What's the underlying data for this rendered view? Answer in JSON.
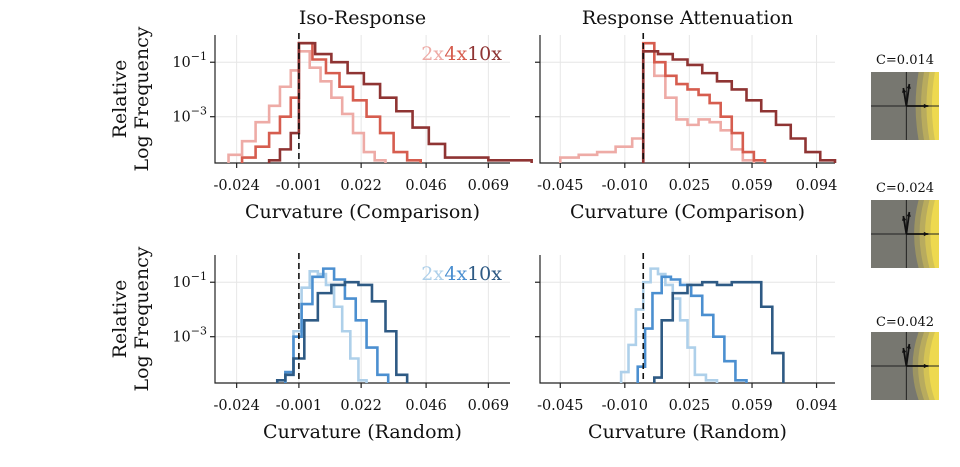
{
  "chart_data": [
    {
      "id": "iso_comparison",
      "type": "line",
      "title": "Iso-Response",
      "xlabel": "Curvature (Comparison)",
      "ylabel": [
        "Relative",
        "Log Frequency"
      ],
      "x_ticks": [
        "-0.024",
        "-0.001",
        "0.022",
        "0.046",
        "0.069"
      ],
      "y_ticks": [
        "10^-1",
        "10^-3"
      ],
      "xlim": [
        -0.032,
        0.077
      ],
      "ylog_range": [
        -4.7,
        0.0
      ],
      "ref_line_x": -0.001,
      "legend": [
        "2x",
        "4x",
        "10x"
      ],
      "series": [
        {
          "name": "2x",
          "color": "#eeaba6",
          "x": [
            -0.027,
            -0.022,
            -0.017,
            -0.012,
            -0.008,
            -0.004,
            -0.001,
            0.003,
            0.007,
            0.011,
            0.015,
            0.019,
            0.023,
            0.027
          ],
          "y": [
            -4.4,
            -3.9,
            -3.2,
            -2.6,
            -1.9,
            -1.3,
            -0.6,
            -1.2,
            -1.7,
            -2.3,
            -2.9,
            -3.6,
            -4.3,
            -4.6
          ]
        },
        {
          "name": "4x",
          "color": "#d65d4f",
          "x": [
            -0.022,
            -0.017,
            -0.012,
            -0.008,
            -0.004,
            -0.001,
            0.004,
            0.009,
            0.014,
            0.019,
            0.024,
            0.029,
            0.034,
            0.039
          ],
          "y": [
            -4.5,
            -4.1,
            -3.6,
            -3.0,
            -2.3,
            -0.3,
            -0.9,
            -1.4,
            -1.9,
            -2.4,
            -3.0,
            -3.6,
            -4.3,
            -4.6
          ]
        },
        {
          "name": "10x",
          "color": "#8f3433",
          "x": [
            -0.012,
            -0.008,
            -0.004,
            -0.001,
            0.005,
            0.011,
            0.017,
            0.023,
            0.029,
            0.035,
            0.041,
            0.047,
            0.053,
            0.069
          ],
          "y": [
            -4.6,
            -4.2,
            -3.6,
            -0.3,
            -0.7,
            -1.0,
            -1.4,
            -1.8,
            -2.3,
            -2.8,
            -3.4,
            -4.0,
            -4.5,
            -4.6
          ]
        }
      ]
    },
    {
      "id": "attn_comparison",
      "type": "line",
      "title": "Response Attenuation",
      "xlabel": "Curvature (Comparison)",
      "ylabel": [],
      "x_ticks": [
        "-0.045",
        "-0.010",
        "0.025",
        "0.059",
        "0.094"
      ],
      "y_ticks": [],
      "xlim": [
        -0.056,
        0.104
      ],
      "ylog_range": [
        -4.7,
        0.0
      ],
      "ref_line_x": 0.0,
      "legend": [],
      "series": [
        {
          "name": "2x",
          "color": "#eeaba6",
          "x": [
            -0.045,
            -0.035,
            -0.025,
            -0.015,
            -0.006,
            0.0,
            0.006,
            0.012,
            0.018,
            0.024,
            0.03,
            0.036,
            0.042,
            0.048,
            0.054
          ],
          "y": [
            -4.5,
            -4.4,
            -4.3,
            -4.1,
            -3.8,
            -0.6,
            -1.5,
            -2.3,
            -3.1,
            -3.3,
            -3.1,
            -3.2,
            -3.5,
            -4.2,
            -4.6
          ]
        },
        {
          "name": "4x",
          "color": "#d65d4f",
          "x": [
            0.0,
            0.006,
            0.012,
            0.018,
            0.024,
            0.03,
            0.036,
            0.042,
            0.048,
            0.054,
            0.06
          ],
          "y": [
            -0.3,
            -1.0,
            -1.5,
            -1.8,
            -2.0,
            -2.2,
            -2.5,
            -3.0,
            -3.6,
            -4.3,
            -4.6
          ]
        },
        {
          "name": "10x",
          "color": "#8f3433",
          "x": [
            0.0,
            0.008,
            0.016,
            0.024,
            0.032,
            0.04,
            0.048,
            0.056,
            0.064,
            0.072,
            0.08,
            0.088,
            0.096
          ],
          "y": [
            -0.6,
            -0.7,
            -0.9,
            -1.1,
            -1.4,
            -1.7,
            -2.0,
            -2.4,
            -2.8,
            -3.3,
            -3.8,
            -4.3,
            -4.6
          ]
        }
      ]
    },
    {
      "id": "iso_random",
      "type": "line",
      "title": "",
      "xlabel": "Curvature (Random)",
      "ylabel": [
        "Relative",
        "Log Frequency"
      ],
      "x_ticks": [
        "-0.024",
        "-0.001",
        "0.022",
        "0.046",
        "0.069"
      ],
      "y_ticks": [
        "10^-1",
        "10^-3"
      ],
      "xlim": [
        -0.032,
        0.077
      ],
      "ylog_range": [
        -4.7,
        0.0
      ],
      "ref_line_x": -0.001,
      "legend": [
        "2x",
        "4x",
        "10x"
      ],
      "series": [
        {
          "name": "2x",
          "color": "#aed0ea",
          "x": [
            -0.006,
            -0.003,
            0.0,
            0.003,
            0.006,
            0.009,
            0.012,
            0.015,
            0.018,
            0.021
          ],
          "y": [
            -4.4,
            -2.8,
            -1.2,
            -0.6,
            -0.7,
            -1.1,
            -1.9,
            -2.8,
            -3.8,
            -4.6
          ]
        },
        {
          "name": "4x",
          "color": "#4b8fd0",
          "x": [
            -0.006,
            -0.003,
            0.0,
            0.004,
            0.008,
            0.012,
            0.016,
            0.02,
            0.024,
            0.028
          ],
          "y": [
            -4.3,
            -3.0,
            -1.8,
            -0.8,
            -0.5,
            -0.9,
            -1.6,
            -2.4,
            -3.4,
            -4.4
          ]
        },
        {
          "name": "10x",
          "color": "#2e5a84",
          "x": [
            -0.009,
            -0.006,
            -0.003,
            0.001,
            0.006,
            0.011,
            0.016,
            0.021,
            0.026,
            0.031,
            0.035
          ],
          "y": [
            -4.6,
            -4.4,
            -3.8,
            -2.4,
            -1.4,
            -1.1,
            -1.0,
            -1.1,
            -1.7,
            -2.8,
            -4.4
          ]
        }
      ]
    },
    {
      "id": "attn_random",
      "type": "line",
      "title": "",
      "xlabel": "Curvature (Random)",
      "ylabel": [],
      "x_ticks": [
        "-0.045",
        "-0.010",
        "0.025",
        "0.059",
        "0.094"
      ],
      "y_ticks": [],
      "xlim": [
        -0.056,
        0.104
      ],
      "ylog_range": [
        -4.7,
        0.0
      ],
      "ref_line_x": 0.0,
      "legend": [],
      "series": [
        {
          "name": "2x",
          "color": "#aed0ea",
          "x": [
            -0.012,
            -0.008,
            -0.004,
            0.0,
            0.004,
            0.008,
            0.012,
            0.016,
            0.02,
            0.024,
            0.028,
            0.034
          ],
          "y": [
            -4.3,
            -3.3,
            -2.0,
            -1.0,
            -0.5,
            -0.7,
            -1.1,
            -1.6,
            -2.4,
            -3.4,
            -4.4,
            -4.6
          ]
        },
        {
          "name": "4x",
          "color": "#4b8fd0",
          "x": [
            -0.003,
            0.001,
            0.005,
            0.01,
            0.015,
            0.02,
            0.026,
            0.032,
            0.038,
            0.044,
            0.05
          ],
          "y": [
            -4.1,
            -2.7,
            -1.4,
            -0.8,
            -0.9,
            -1.1,
            -1.5,
            -2.2,
            -3.0,
            -3.9,
            -4.6
          ]
        },
        {
          "name": "10x",
          "color": "#2e5a84",
          "x": [
            0.006,
            0.01,
            0.016,
            0.024,
            0.032,
            0.04,
            0.048,
            0.056,
            0.064,
            0.07
          ],
          "y": [
            -4.5,
            -2.4,
            -1.4,
            -1.1,
            -1.0,
            -1.1,
            -1.0,
            -1.0,
            -1.9,
            -3.6
          ]
        }
      ]
    }
  ],
  "insets": [
    {
      "label": "C=0.014"
    },
    {
      "label": "C=0.024"
    },
    {
      "label": "C=0.042"
    }
  ]
}
